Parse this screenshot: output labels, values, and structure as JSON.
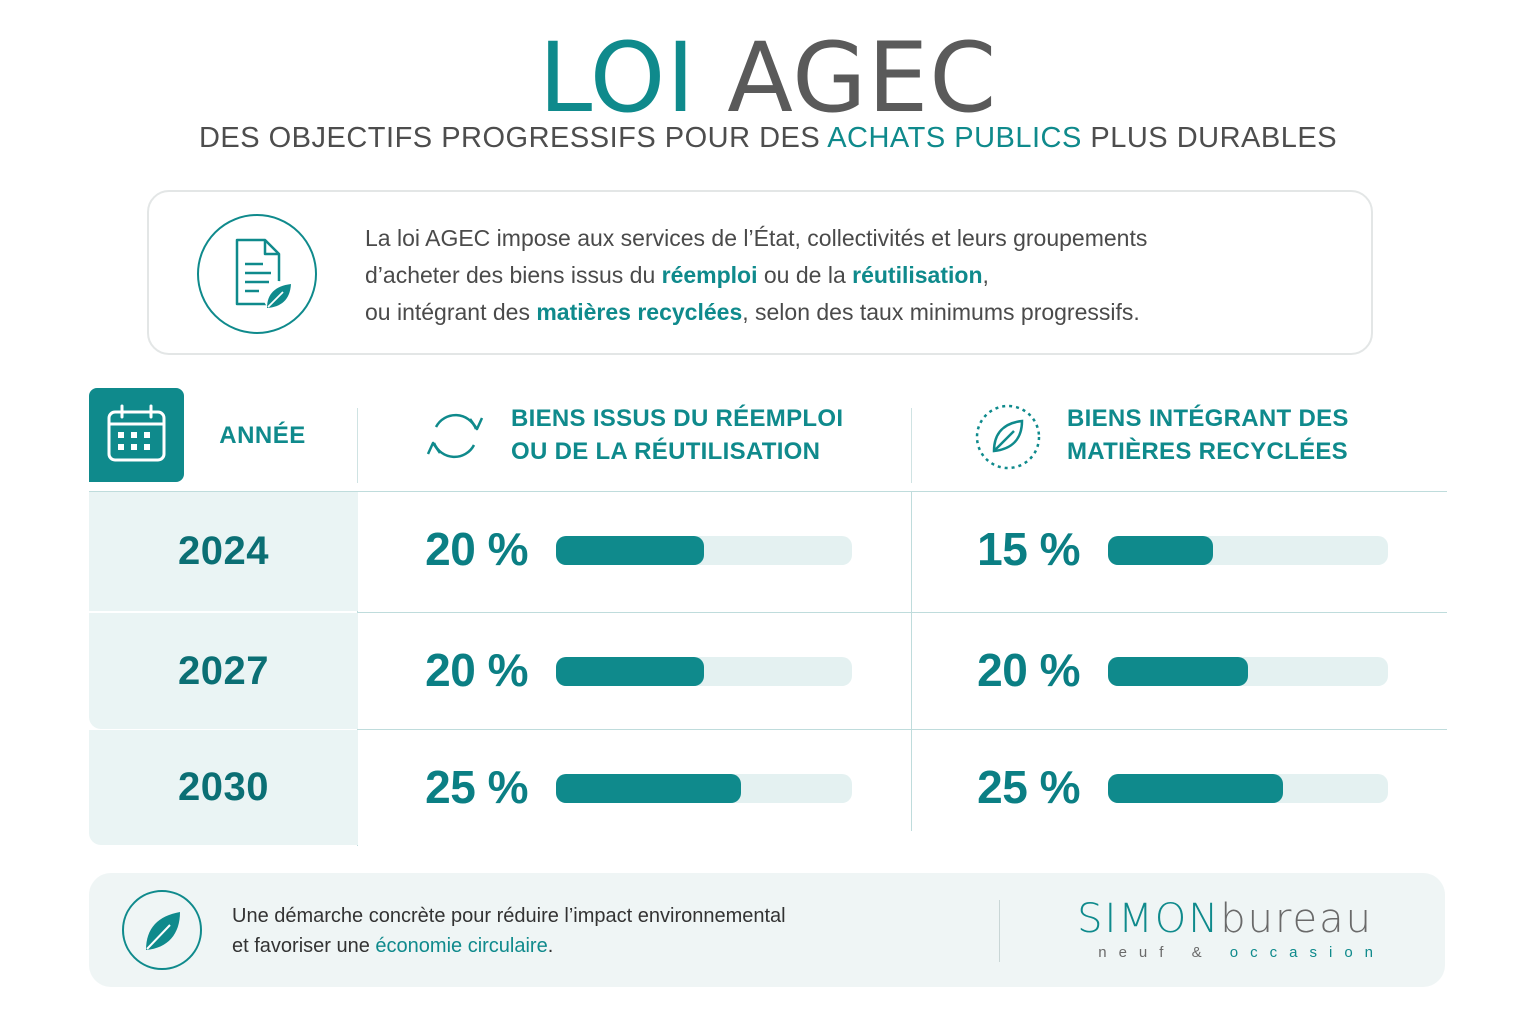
{
  "header": {
    "title_part1": "LOI",
    "title_part2": "AGEC",
    "subtitle_pre": "DES OBJECTIFS PROGRESSIFS POUR DES",
    "subtitle_hl": "ACHATS PUBLICS",
    "subtitle_post": "PLUS DURABLES"
  },
  "intro": {
    "icon": "document-leaf-icon",
    "line1": "La loi AGEC impose aux services de l’État, collectivités et leurs groupements",
    "line2_a": "d’acheter des biens issus du ",
    "line2_b": "réemploi",
    "line2_c": " ou de la ",
    "line2_d": "réutilisation",
    "line2_e": ",",
    "line3_a": "ou intégrant des ",
    "line3_b": "matières recyclées",
    "line3_c": ", selon des taux minimums progressifs."
  },
  "table": {
    "year_header": "ANNÉE",
    "col1_line1": "BIENS ISSUS DU RÉEMPLOI",
    "col1_line2": "OU DE LA RÉUTILISATION",
    "col2_line1": "BIENS INTÉGRANT DES",
    "col2_line2": "MATIÈRES RECYCLÉES",
    "rows": [
      {
        "year": "2024",
        "reemploi": "20 %",
        "reemploi_value": 20,
        "recyclees": "15 %",
        "recyclees_value": 15
      },
      {
        "year": "2027",
        "reemploi": "20 %",
        "reemploi_value": 20,
        "recyclees": "20 %",
        "recyclees_value": 20
      },
      {
        "year": "2030",
        "reemploi": "25 %",
        "reemploi_value": 25,
        "recyclees": "25 %",
        "recyclees_value": 25
      }
    ]
  },
  "footer": {
    "line1": "Une démarche concrète pour réduire l’impact environnemental",
    "line2_a": "et favoriser une ",
    "line2_b": "économie circulaire",
    "line2_c": ".",
    "brand_a": "SIMON",
    "brand_b": "bureau",
    "brand_sub_a": "neuf",
    "brand_sub_b": "&",
    "brand_sub_c": "occasion"
  },
  "colors": {
    "accent": "#0f8a8c",
    "track": "#e4f1f1",
    "year_bg": "#eaf4f4"
  }
}
